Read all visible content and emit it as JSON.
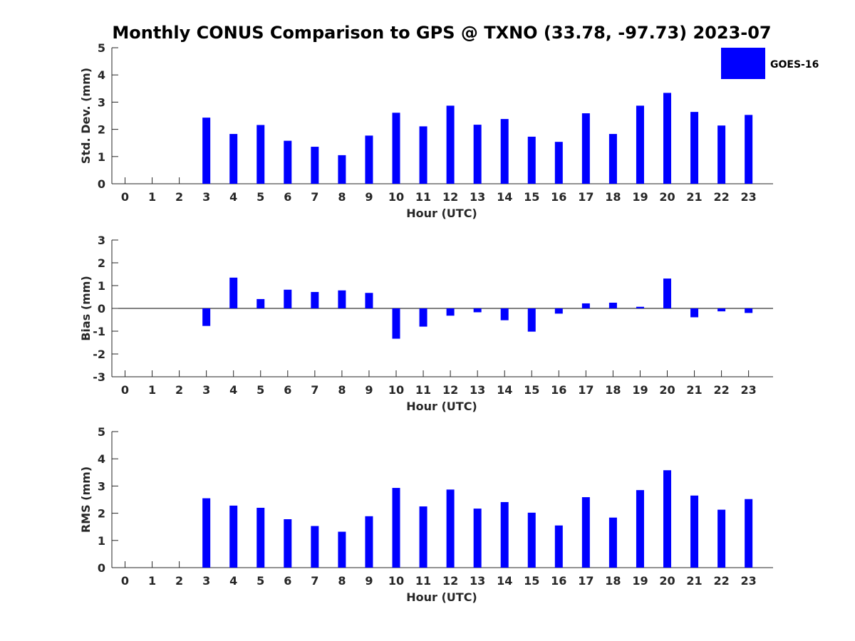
{
  "title": "Monthly CONUS Comparison to GPS @ TXNO (33.78, -97.73) 2023-07",
  "legend": {
    "label": "GOES-16",
    "color": "#0000ff",
    "position": "top-right"
  },
  "chart_data": [
    {
      "type": "bar",
      "name": "std-dev",
      "categories": [
        "0",
        "1",
        "2",
        "3",
        "4",
        "5",
        "6",
        "7",
        "8",
        "9",
        "10",
        "11",
        "12",
        "13",
        "14",
        "15",
        "16",
        "17",
        "18",
        "19",
        "20",
        "21",
        "22",
        "23"
      ],
      "series": [
        {
          "name": "GOES-16",
          "values": [
            null,
            null,
            null,
            2.43,
            1.83,
            2.16,
            1.58,
            1.36,
            1.05,
            1.77,
            2.61,
            2.11,
            2.87,
            2.17,
            2.38,
            1.73,
            1.54,
            2.59,
            1.83,
            2.87,
            3.34,
            2.64,
            2.14,
            2.53
          ]
        }
      ],
      "xlabel": "Hour (UTC)",
      "ylabel": "Std. Dev. (mm)",
      "ylim": [
        0,
        5
      ],
      "yticks": [
        "0",
        "1",
        "2",
        "3",
        "4",
        "5"
      ]
    },
    {
      "type": "bar",
      "name": "bias",
      "categories": [
        "0",
        "1",
        "2",
        "3",
        "4",
        "5",
        "6",
        "7",
        "8",
        "9",
        "10",
        "11",
        "12",
        "13",
        "14",
        "15",
        "16",
        "17",
        "18",
        "19",
        "20",
        "21",
        "22",
        "23"
      ],
      "series": [
        {
          "name": "GOES-16",
          "values": [
            null,
            null,
            null,
            -0.77,
            1.35,
            0.41,
            0.82,
            0.72,
            0.79,
            0.68,
            -1.33,
            -0.8,
            -0.32,
            -0.17,
            -0.52,
            -1.02,
            -0.23,
            0.22,
            0.25,
            0.07,
            1.31,
            -0.39,
            -0.13,
            -0.2
          ]
        }
      ],
      "xlabel": "Hour (UTC)",
      "ylabel": "Bias (mm)",
      "ylim": [
        -3,
        3
      ],
      "yticks": [
        "-3",
        "-2",
        "-1",
        "0",
        "1",
        "2",
        "3"
      ]
    },
    {
      "type": "bar",
      "name": "rms",
      "categories": [
        "0",
        "1",
        "2",
        "3",
        "4",
        "5",
        "6",
        "7",
        "8",
        "9",
        "10",
        "11",
        "12",
        "13",
        "14",
        "15",
        "16",
        "17",
        "18",
        "19",
        "20",
        "21",
        "22",
        "23"
      ],
      "series": [
        {
          "name": "GOES-16",
          "values": [
            null,
            null,
            null,
            2.55,
            2.28,
            2.2,
            1.78,
            1.53,
            1.32,
            1.89,
            2.93,
            2.25,
            2.87,
            2.17,
            2.41,
            2.02,
            1.55,
            2.59,
            1.84,
            2.85,
            3.58,
            2.65,
            2.13,
            2.52
          ]
        }
      ],
      "xlabel": "Hour (UTC)",
      "ylabel": "RMS (mm)",
      "ylim": [
        0,
        5
      ],
      "yticks": [
        "0",
        "1",
        "2",
        "3",
        "4",
        "5"
      ]
    }
  ]
}
